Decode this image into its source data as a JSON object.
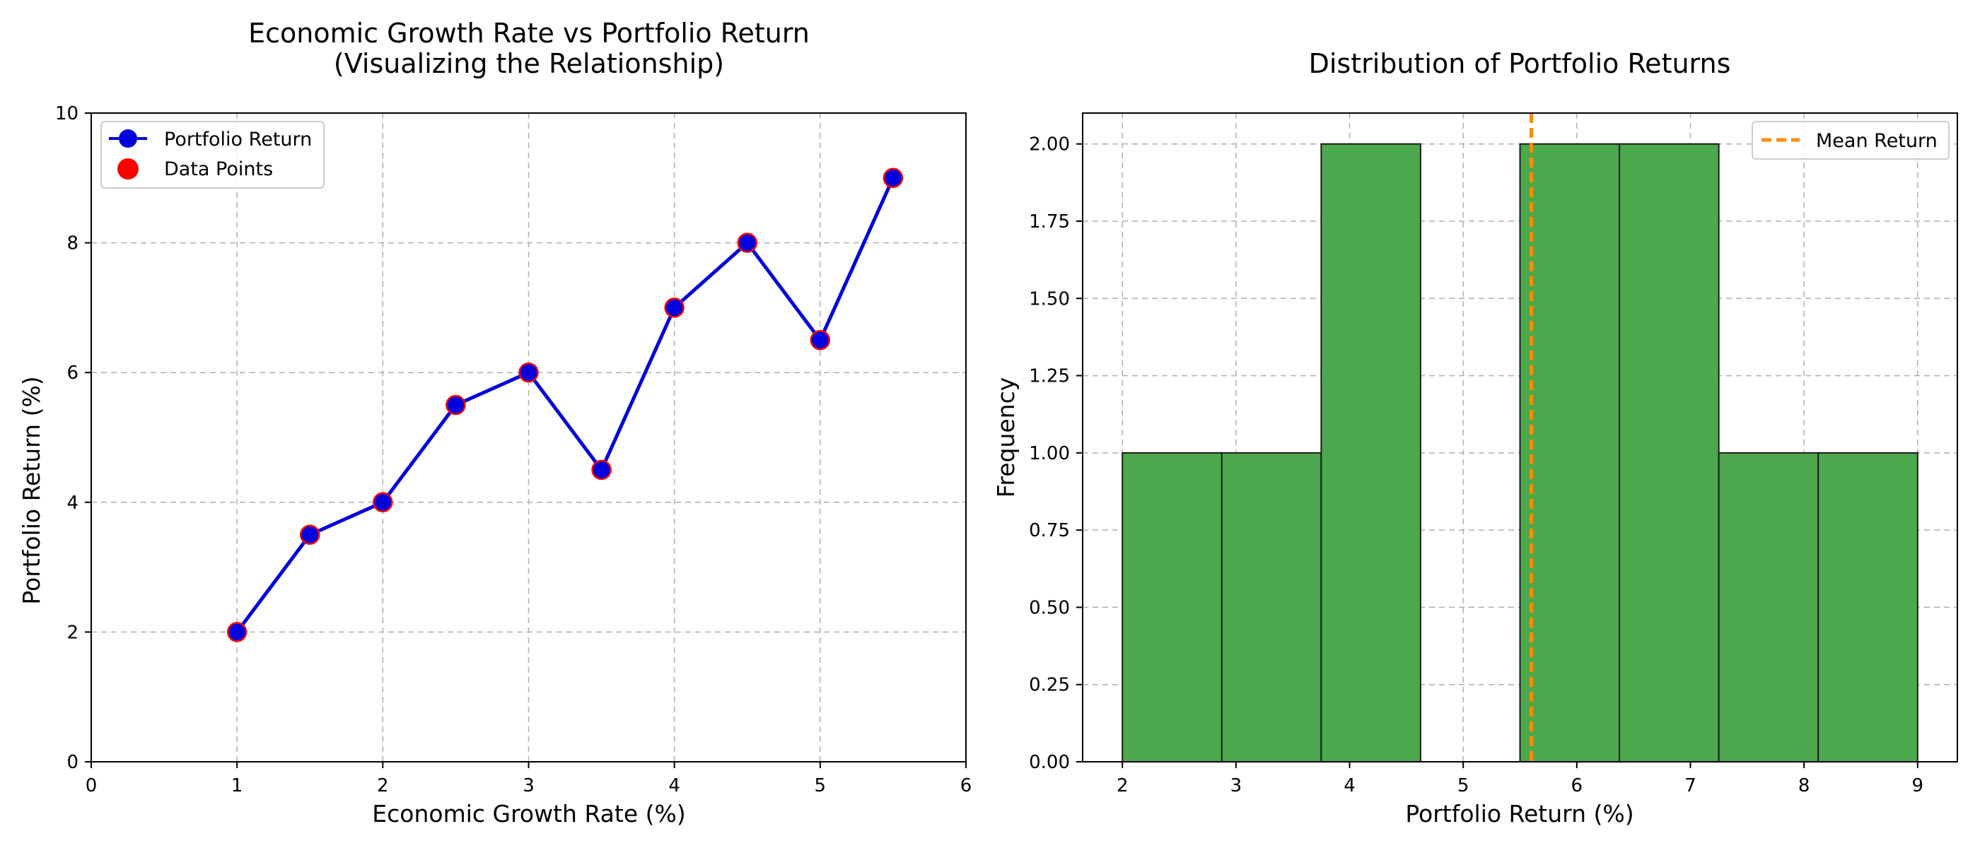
{
  "chart_data": [
    {
      "type": "line",
      "title": "Economic Growth Rate vs Portfolio Return",
      "subtitle": "(Visualizing the Relationship)",
      "xlabel": "Economic Growth Rate (%)",
      "ylabel": "Portfolio Return (%)",
      "xlim": [
        0,
        6
      ],
      "ylim": [
        0,
        10
      ],
      "xticks": [
        0,
        1,
        2,
        3,
        4,
        5,
        6
      ],
      "yticks": [
        0,
        2,
        4,
        6,
        8,
        10
      ],
      "grid": true,
      "legend_position": "top-left",
      "series": [
        {
          "name": "Portfolio Return",
          "style": "line-with-markers",
          "color": "#0000dd",
          "x": [
            1,
            1.5,
            2,
            2.5,
            3,
            3.5,
            4,
            4.5,
            5,
            5.5
          ],
          "y": [
            2,
            3.5,
            4,
            5.5,
            6,
            4.5,
            7,
            8,
            6.5,
            9
          ]
        },
        {
          "name": "Data Points",
          "style": "scatter",
          "color": "#ff0000",
          "x": [
            1,
            1.5,
            2,
            2.5,
            3,
            3.5,
            4,
            4.5,
            5,
            5.5
          ],
          "y": [
            2,
            3.5,
            4,
            5.5,
            6,
            4.5,
            7,
            8,
            6.5,
            9
          ]
        }
      ]
    },
    {
      "type": "bar",
      "title": "Distribution of Portfolio Returns",
      "xlabel": "Portfolio Return (%)",
      "ylabel": "Frequency",
      "xlim": [
        1.65,
        9.35
      ],
      "ylim": [
        0,
        2.1
      ],
      "xticks": [
        2,
        3,
        4,
        5,
        6,
        7,
        8,
        9
      ],
      "yticks": [
        "0.00",
        "0.25",
        "0.50",
        "0.75",
        "1.00",
        "1.25",
        "1.50",
        "1.75",
        "2.00"
      ],
      "grid": true,
      "legend_position": "top-right",
      "bar_color": "#4ca84c",
      "bins": [
        {
          "start": 2,
          "end": 2.875,
          "count": 1
        },
        {
          "start": 2.875,
          "end": 3.75,
          "count": 1
        },
        {
          "start": 3.75,
          "end": 4.625,
          "count": 2
        },
        {
          "start": 4.625,
          "end": 5.5,
          "count": 0
        },
        {
          "start": 5.5,
          "end": 6.375,
          "count": 2
        },
        {
          "start": 6.375,
          "end": 7.25,
          "count": 2
        },
        {
          "start": 7.25,
          "end": 8.125,
          "count": 1
        },
        {
          "start": 8.125,
          "end": 9,
          "count": 1
        }
      ],
      "mean_line": {
        "name": "Mean Return",
        "value": 5.6,
        "color": "#ff8c00"
      }
    }
  ]
}
